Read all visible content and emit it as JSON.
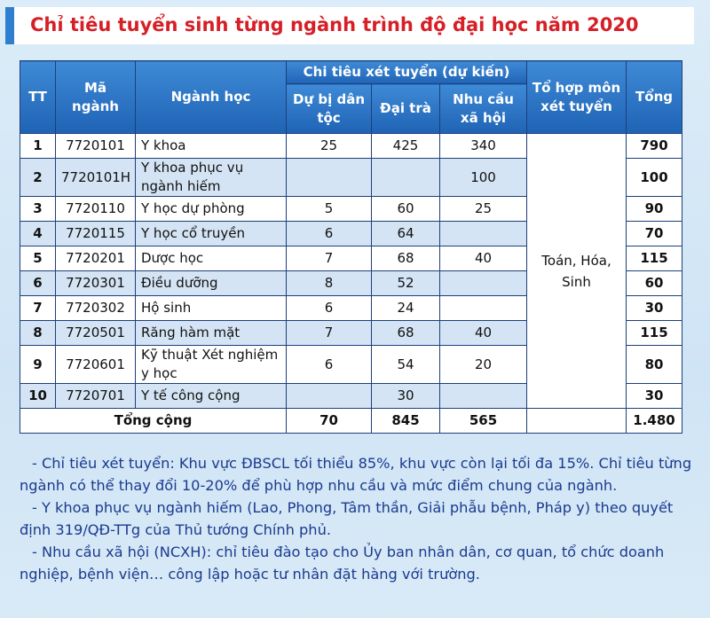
{
  "title": "Chỉ tiêu tuyển sinh từng ngành trình độ đại học năm 2020",
  "table": {
    "headers": {
      "tt": "TT",
      "code": "Mã ngành",
      "name": "Ngành học",
      "group": "Chi tiêu xét tuyển (dự kiến)",
      "dbdt": "Dự bị dân tộc",
      "daitra": "Đại trà",
      "ncxh": "Nhu cầu xã hội",
      "combo": "Tổ hợp môn xét tuyển",
      "total": "Tổng"
    },
    "rows": [
      [
        1,
        "7720101",
        "Y khoa",
        25,
        425,
        340,
        790
      ],
      [
        2,
        "7720101H",
        "Y khoa phục vụ ngành hiếm",
        null,
        null,
        100,
        100
      ],
      [
        3,
        "7720110",
        "Y học dự phòng",
        5,
        60,
        25,
        90
      ],
      [
        4,
        "7720115",
        "Y học cổ truyền",
        6,
        64,
        null,
        70
      ],
      [
        5,
        "7720201",
        "Dược học",
        7,
        68,
        40,
        115
      ],
      [
        6,
        "7720301",
        "Điều dưỡng",
        8,
        52,
        null,
        60
      ],
      [
        7,
        "7720302",
        "Hộ sinh",
        6,
        24,
        null,
        30
      ],
      [
        8,
        "7720501",
        "Răng hàm mặt",
        7,
        68,
        40,
        115
      ],
      [
        9,
        "7720601",
        "Kỹ thuật Xét nghiệm y học",
        6,
        54,
        20,
        80
      ],
      [
        10,
        "7720701",
        "Y tế công cộng",
        null,
        30,
        null,
        30
      ]
    ],
    "combo": "Toán, Hóa, Sinh",
    "total": {
      "label": "Tổng cộng",
      "dbdt": 70,
      "daitra": 845,
      "ncxh": 565,
      "total": "1.480"
    }
  },
  "notes": [
    "- Chỉ tiêu xét tuyển: Khu vực ĐBSCL tối thiểu 85%, khu vực còn lại tối đa 15%. Chỉ tiêu từng ngành có thể thay đổi 10-20% để phù hợp nhu cầu và mức điểm chung của ngành.",
    "- Y khoa phục vụ ngành hiếm (Lao, Phong, Tâm thần, Giải phẫu bệnh, Pháp y) theo quyết định 319/QĐ-TTg của Thủ tướng Chính phủ.",
    "- Nhu cầu xã hội (NCXH): chỉ tiêu đào tạo cho Ủy ban nhân dân, cơ quan, tổ chức doanh nghiệp, bệnh viện… công lập hoặc tư nhân đặt hàng với trường."
  ]
}
